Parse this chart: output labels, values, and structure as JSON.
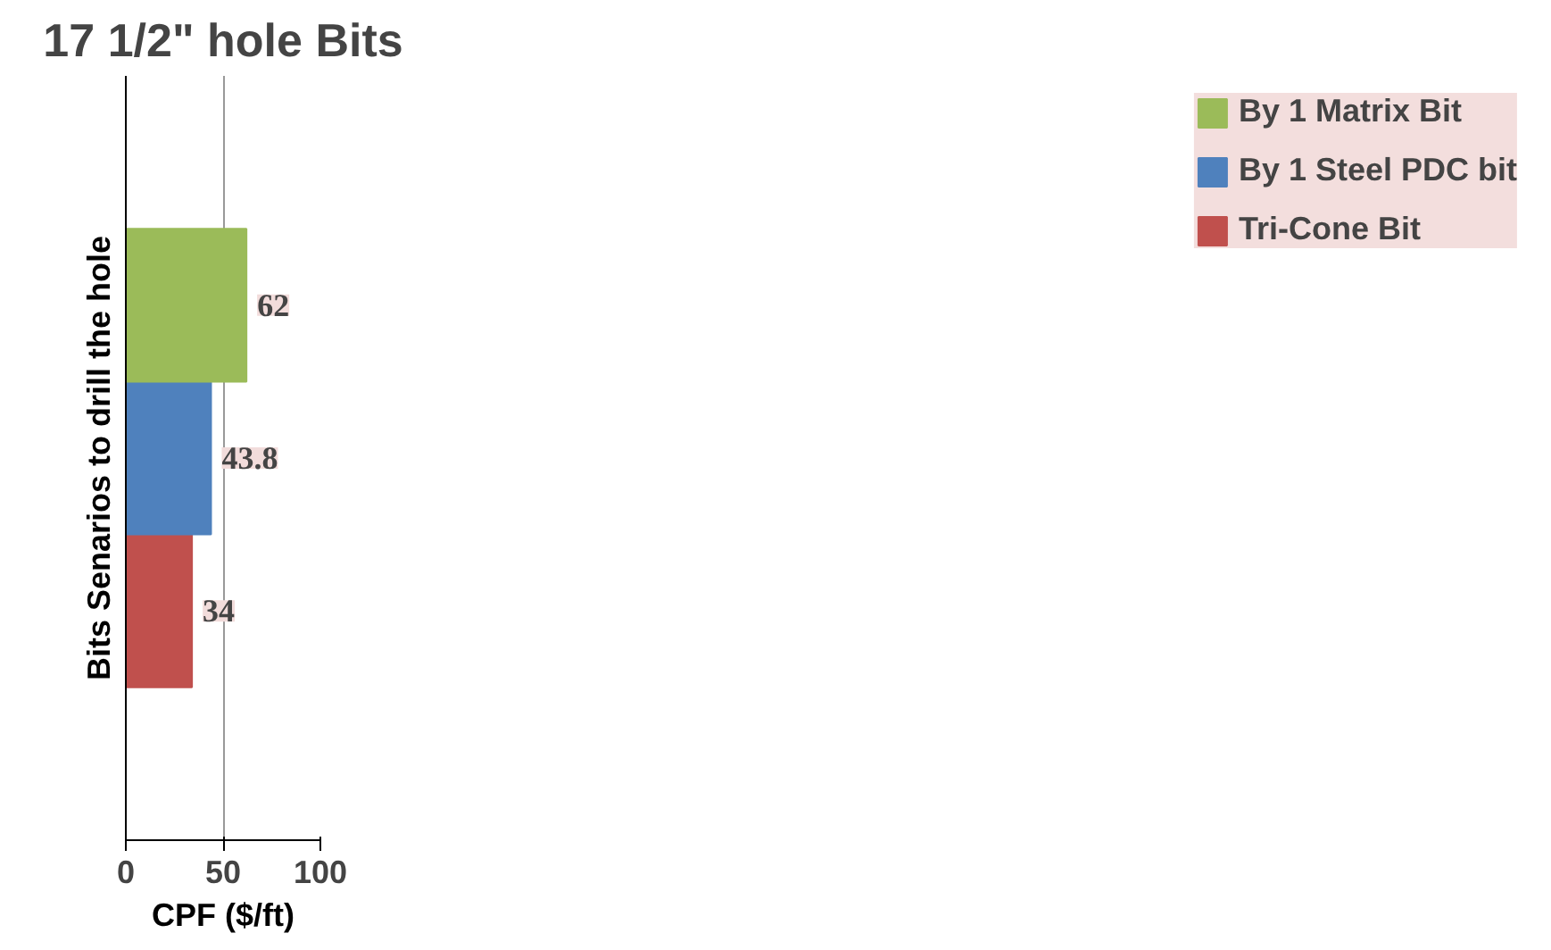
{
  "chart_data": {
    "type": "bar",
    "orientation": "horizontal",
    "title": "17 1/2\" hole Bits",
    "xlabel": "CPF ($/ft)",
    "ylabel": "Bits Senarios to drill the hole",
    "categories": [
      null
    ],
    "series": [
      {
        "name": "Tri-Cone Bit",
        "color": "#c0504d",
        "values": [
          34
        ]
      },
      {
        "name": "By 1 Steel PDC bit",
        "color": "#4f81bd",
        "values": [
          43.8
        ]
      },
      {
        "name": "By 1 Matrix Bit",
        "color": "#9bbb59",
        "values": [
          62
        ]
      }
    ],
    "xlim": [
      0,
      100
    ],
    "xticks": [
      0,
      50,
      100
    ],
    "grid": "x",
    "legend": "right",
    "data_labels": true
  }
}
